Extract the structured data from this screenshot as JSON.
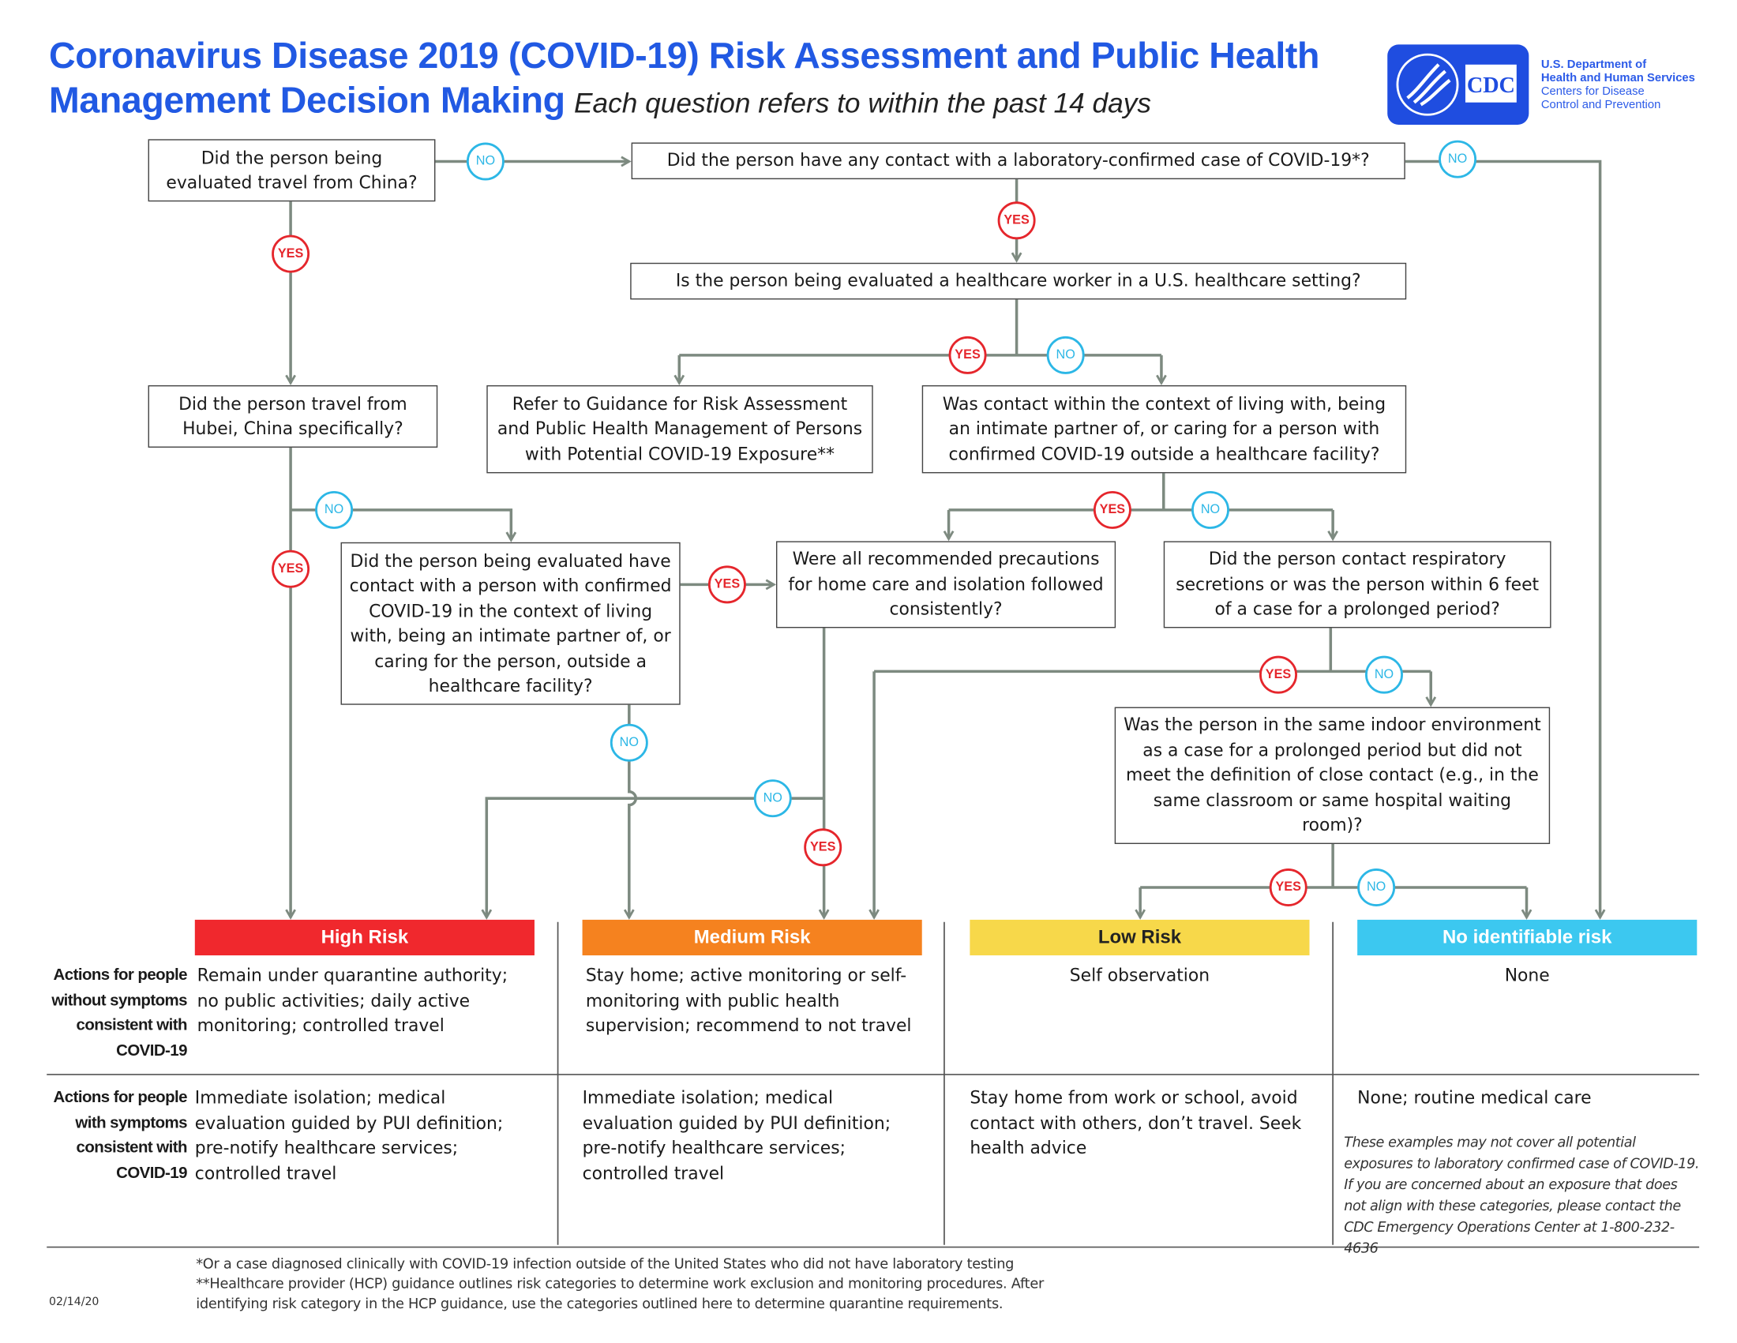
{
  "header": {
    "title_line1": "Coronavirus Disease 2019 (COVID-19) Risk Assessment and Public Health",
    "title_line2": "Management Decision Making",
    "subtitle": "Each question refers to within the past 14 days",
    "brand_color": "#2159e3"
  },
  "logo": {
    "mark_text": "CDC",
    "line1": "U.S. Department of",
    "line2": "Health and Human Services",
    "line3": "Centers for Disease",
    "line4": "Control and Prevention"
  },
  "questions": {
    "china": "Did the person being evaluated travel from China?",
    "lab_contact": "Did the person have any contact with a laboratory-confirmed case of COVID-19*?",
    "hcw": "Is the person being evaluated a healthcare worker in a U.S. healthcare setting?",
    "hubei": "Did the person travel from Hubei, China specifically?",
    "guidance": "Refer to Guidance for Risk Assessment and Public Health Management of Persons with Potential COVID-19 Exposure**",
    "living_with": "Was contact within the context of living with, being an intimate partner of, or caring for a person with confirmed COVID-19 outside a healthcare facility?",
    "household_contact": "Did the person being evaluated have contact with a person with confirmed COVID-19 in the context of living with, being an intimate partner of, or caring for the person, outside a healthcare facility?",
    "precautions": "Were all recommended precautions for home care and isolation followed consistently?",
    "respiratory": "Did the person contact respiratory secretions or was the person within 6 feet of a case for a prolonged period?",
    "indoor": "Was the person in the same indoor environment as a case for a prolonged period but did not meet the definition of close contact (e.g., in the same classroom or same hospital waiting room)?"
  },
  "badges": {
    "yes": "YES",
    "no": "NO",
    "yes_color": "#e5262c",
    "no_color": "#2cb7e6"
  },
  "risks": [
    {
      "label": "High Risk",
      "color": "#f0282d",
      "without_symptoms": "Remain under quarantine authority; no public activities; daily active monitoring; controlled travel",
      "with_symptoms": "Immediate isolation; medical evaluation guided by PUI definition; pre-notify healthcare services; controlled travel"
    },
    {
      "label": "Medium Risk",
      "color": "#f5821f",
      "without_symptoms": "Stay home; active monitoring or self-monitoring with public health supervision; recommend to not travel",
      "with_symptoms": "Immediate isolation; medical evaluation guided by PUI definition; pre-notify healthcare services; controlled travel"
    },
    {
      "label": "Low Risk",
      "color": "#f7d84a",
      "without_symptoms": "Self observation",
      "with_symptoms": "Stay home from work or school, avoid contact with others, don’t travel. Seek health advice"
    },
    {
      "label": "No identifiable risk",
      "color": "#3cc8f0",
      "without_symptoms": "None",
      "with_symptoms": "None; routine medical care"
    }
  ],
  "row_labels": {
    "without_symptoms": "Actions for people without symptoms consistent with COVID-19",
    "with_symptoms": "Actions for people with symptoms consistent with COVID-19"
  },
  "note": "These examples may not cover all potential exposures to laboratory confirmed case of COVID-19. If you are concerned about an exposure that does not align with these categories, please contact the CDC Emergency Operations Center at 1-800-232-4636",
  "footnotes": {
    "line1": "*Or a case diagnosed clinically with COVID-19 infection outside of the United States who did not have laboratory testing",
    "line2": "**Healthcare provider (HCP) guidance outlines risk categories to determine work exclusion and monitoring procedures. After identifying risk category in the HCP guidance, use the categories outlined here to determine quarantine requirements."
  },
  "date": "02/14/20"
}
